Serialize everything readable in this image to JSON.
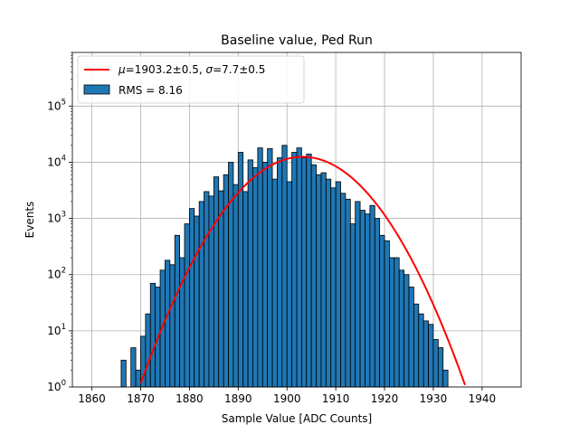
{
  "chart_data": {
    "type": "bar",
    "title": "Baseline value, Ped Run",
    "xlabel": "Sample Value [ADC Counts]",
    "ylabel": "Events",
    "yscale": "log",
    "xlim": [
      1856,
      1948
    ],
    "ylim": [
      1,
      900000
    ],
    "grid": true,
    "legend_placement": "top-left",
    "xticks": [
      1860,
      1870,
      1880,
      1890,
      1900,
      1910,
      1920,
      1930,
      1940
    ],
    "yticks": [
      1,
      10,
      100,
      1000,
      10000,
      100000
    ],
    "ytick_labels": [
      {
        "base": "10",
        "exp": "0"
      },
      {
        "base": "10",
        "exp": "1"
      },
      {
        "base": "10",
        "exp": "2"
      },
      {
        "base": "10",
        "exp": "3"
      },
      {
        "base": "10",
        "exp": "4"
      },
      {
        "base": "10",
        "exp": "5"
      }
    ],
    "histogram": {
      "name": "RMS = 8.16",
      "color": "#1f77b4",
      "edgecolor": "#000000",
      "bin_width": 1,
      "bin_start": 1866,
      "counts": [
        3,
        1,
        5,
        2,
        8,
        20,
        70,
        60,
        120,
        180,
        150,
        500,
        200,
        800,
        1500,
        1100,
        2000,
        3000,
        2500,
        5500,
        3100,
        6000,
        10000,
        4000,
        15000,
        3000,
        11000,
        8000,
        18000,
        10000,
        17500,
        5000,
        12000,
        20000,
        4500,
        15000,
        18000,
        12000,
        14000,
        9000,
        6000,
        6500,
        5000,
        3500,
        4500,
        2800,
        2200,
        800,
        2000,
        1400,
        1200,
        1700,
        1000,
        500,
        400,
        200,
        200,
        120,
        100,
        60,
        30,
        20,
        15,
        13,
        7,
        5,
        2,
        1,
        0,
        0,
        0,
        0,
        0,
        0,
        0,
        0
      ]
    },
    "fit": {
      "name_mu_value": "=1903.2±0.5, ",
      "name_sigma_value": "=7.7±0.5",
      "color": "#ff0000",
      "mu": 1903.2,
      "sigma": 7.7,
      "amplitude": 12500
    },
    "legend": {
      "fit_mu_symbol": "μ",
      "fit_sigma_symbol": "σ",
      "hist_label": "RMS = 8.16"
    }
  }
}
